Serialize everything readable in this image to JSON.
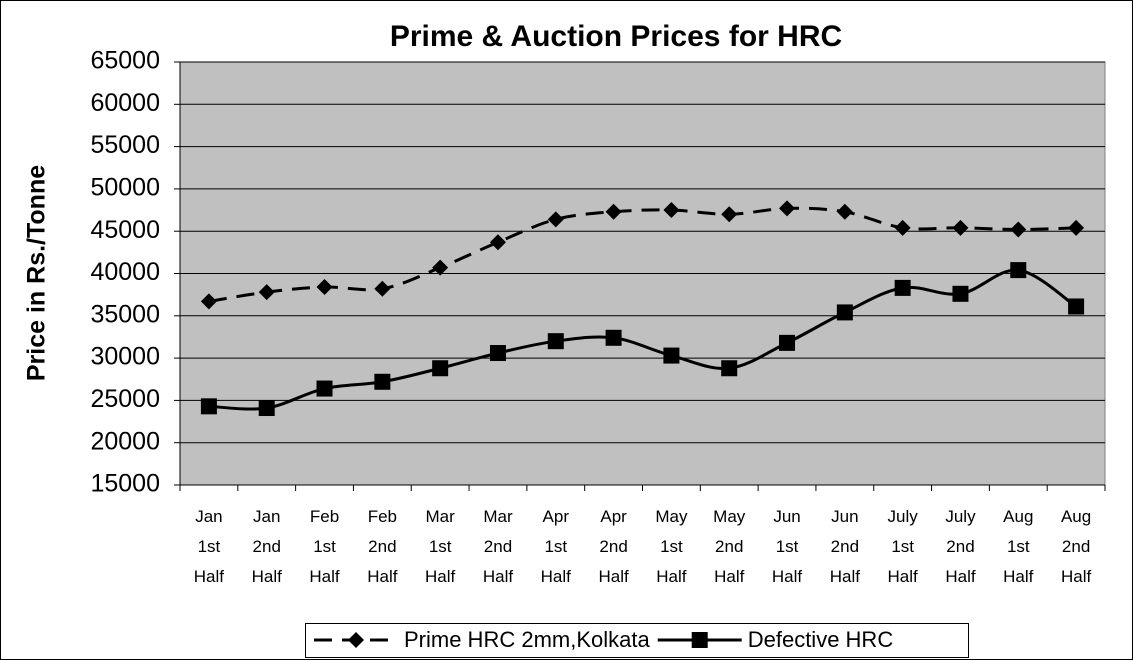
{
  "chart_data": {
    "type": "line",
    "title": "Prime & Auction Prices for HRC",
    "y_label": "Price in Rs./Tonne",
    "categories": [
      "Jan 1st Half",
      "Jan 2nd Half",
      "Feb 1st Half",
      "Feb 2nd Half",
      "Mar 1st Half",
      "Mar 2nd Half",
      "Apr 1st Half",
      "Apr 2nd Half",
      "May 1st Half",
      "May 2nd Half",
      "Jun 1st Half",
      "Jun 2nd Half",
      "July 1st Half",
      "July 2nd Half",
      "Aug 1st Half",
      "Aug 2nd Half"
    ],
    "series": [
      {
        "name": "Prime HRC 2mm,Kolkata",
        "color": "#000000",
        "marker": "diamond",
        "dashed": true,
        "values": [
          36700,
          37800,
          38400,
          38200,
          40700,
          43700,
          46400,
          47300,
          47500,
          47000,
          47700,
          47300,
          45400,
          45400,
          45200,
          45400
        ]
      },
      {
        "name": "Defective HRC",
        "color": "#000000",
        "marker": "square",
        "dashed": false,
        "values": [
          24300,
          24100,
          26400,
          27200,
          28800,
          30600,
          32000,
          32400,
          30300,
          28800,
          31800,
          35400,
          38300,
          37600,
          40400,
          36100
        ]
      }
    ],
    "ylim": [
      15000,
      65000
    ],
    "yticks": [
      15000,
      20000,
      25000,
      30000,
      35000,
      40000,
      45000,
      50000,
      55000,
      60000,
      65000
    ],
    "grid": true,
    "legend": "bottom"
  }
}
